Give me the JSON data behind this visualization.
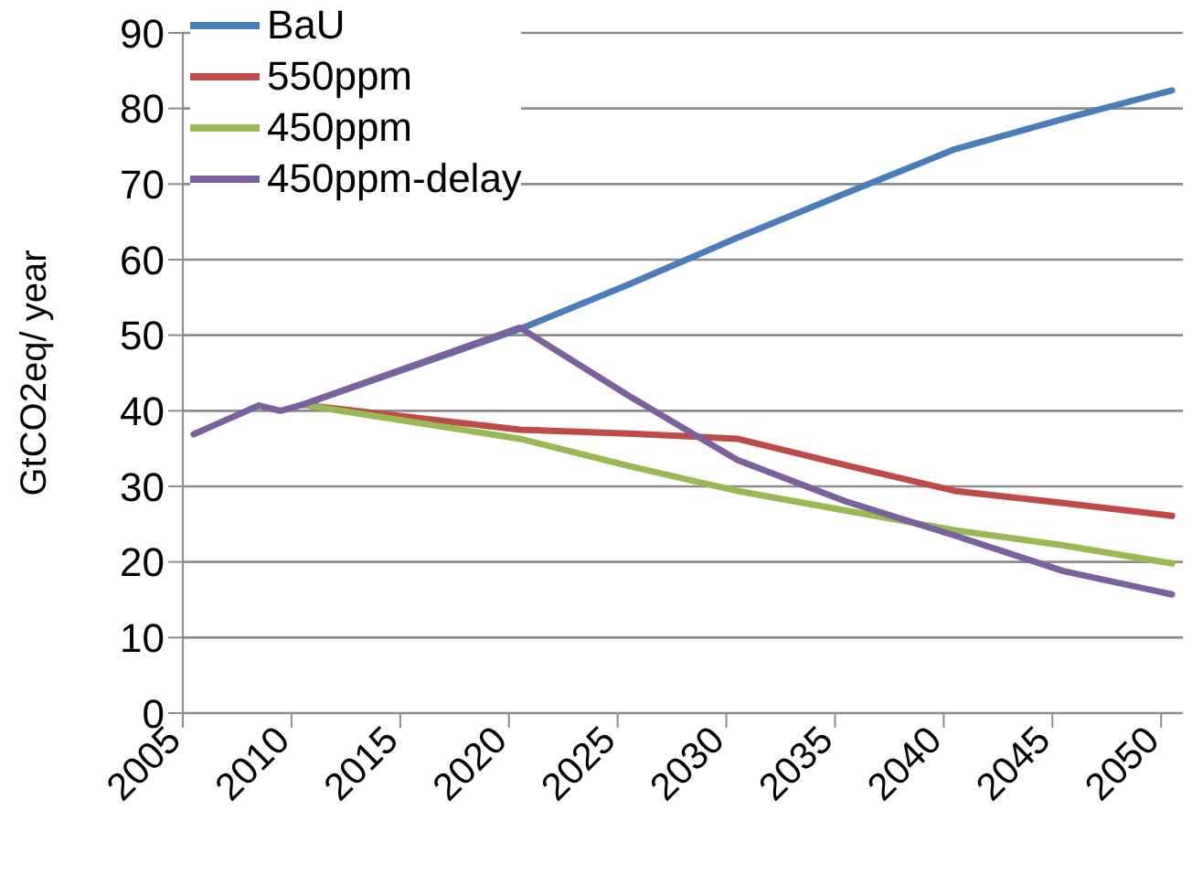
{
  "chart_data": {
    "type": "line",
    "ylabel": "GtCO2eq/ year",
    "x": [
      2005.5,
      2008.5,
      2009.5,
      2010.5,
      2020.5,
      2025.5,
      2030.5,
      2035.5,
      2040.5,
      2045.5,
      2050.5
    ],
    "xlim": [
      2005,
      2051
    ],
    "xticks": [
      2005,
      2010,
      2015,
      2020,
      2025,
      2030,
      2035,
      2040,
      2045,
      2050
    ],
    "ylim": [
      0,
      90
    ],
    "yticks": [
      0,
      10,
      20,
      30,
      40,
      50,
      60,
      70,
      80,
      90
    ],
    "grid": "y",
    "legend": "top left",
    "marker": "none",
    "line_style": "solid",
    "series": [
      {
        "name": "BaU",
        "color": "#4a7ebb",
        "values": [
          null,
          null,
          null,
          40.8,
          50.8,
          56.7,
          62.9,
          68.8,
          74.6,
          78.6,
          82.4
        ]
      },
      {
        "name": "550ppm",
        "color": "#be4b48",
        "values": [
          null,
          null,
          null,
          40.8,
          37.5,
          37,
          36.3,
          32.8,
          29.4,
          27.8,
          26.1
        ]
      },
      {
        "name": "450ppm",
        "color": "#98b954",
        "values": [
          null,
          null,
          null,
          40.8,
          36.3,
          32.7,
          29.4,
          26.8,
          24.2,
          22.2,
          19.8
        ]
      },
      {
        "name": "450ppm-delay",
        "color": "#7d60a0",
        "values": [
          36.9,
          40.7,
          40,
          40.8,
          51,
          42,
          33.5,
          28,
          23.5,
          18.8,
          15.7
        ]
      }
    ]
  }
}
